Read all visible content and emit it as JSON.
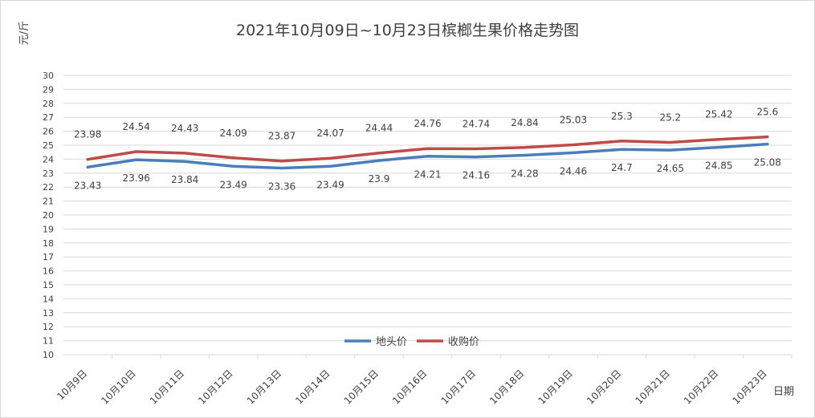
{
  "chart_data": {
    "type": "line",
    "title": "2021年10月09日~10月23日槟榔生果价格走势图",
    "ylabel": "元/斤",
    "xlabel": "日期",
    "categories": [
      "10月9日",
      "10月10日",
      "10月11日",
      "10月12日",
      "10月13日",
      "10月14日",
      "10月15日",
      "10月16日",
      "10月17日",
      "10月18日",
      "10月19日",
      "10月20日",
      "10月21日",
      "10月22日",
      "10月23日"
    ],
    "yticks": [
      "30",
      "29",
      "28",
      "27",
      "26",
      "25",
      "24",
      "23",
      "22",
      "21",
      "20",
      "19",
      "18",
      "17",
      "16",
      "15",
      "14",
      "13",
      "12",
      "11",
      "10"
    ],
    "ylim": [
      10,
      30
    ],
    "grid": true,
    "legend_position": "bottom-center",
    "series": [
      {
        "name": "地头价",
        "color": "#4a7ebb",
        "values": [
          23.43,
          23.96,
          23.84,
          23.49,
          23.36,
          23.49,
          23.9,
          24.21,
          24.16,
          24.28,
          24.46,
          24.7,
          24.65,
          24.85,
          25.08
        ],
        "labels": [
          "23.43",
          "23.96",
          "23.84",
          "23.49",
          "23.36",
          "23.49",
          "23.9",
          "24.21",
          "24.16",
          "24.28",
          "24.46",
          "24.7",
          "24.65",
          "24.85",
          "25.08"
        ]
      },
      {
        "name": "收购价",
        "color": "#be4b48",
        "values": [
          23.98,
          24.54,
          24.43,
          24.09,
          23.87,
          24.07,
          24.44,
          24.76,
          24.74,
          24.84,
          25.03,
          25.3,
          25.2,
          25.42,
          25.6
        ],
        "labels": [
          "23.98",
          "24.54",
          "24.43",
          "24.09",
          "23.87",
          "24.07",
          "24.44",
          "24.76",
          "24.74",
          "24.84",
          "25.03",
          "25.3",
          "25.2",
          "25.42",
          "25.6"
        ]
      }
    ]
  }
}
